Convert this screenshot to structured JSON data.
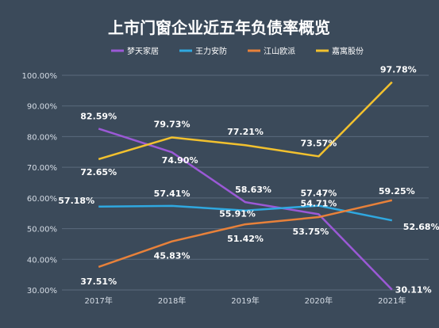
{
  "chart_data": {
    "type": "line",
    "title": "上市门窗企业近五年负债率概览",
    "categories": [
      "2017年",
      "2018年",
      "2019年",
      "2020年",
      "2021年"
    ],
    "y_ticks": [
      "30.00%",
      "40.00%",
      "50.00%",
      "60.00%",
      "70.00%",
      "80.00%",
      "90.00%",
      "100.00%"
    ],
    "ylim": [
      30,
      100
    ],
    "grid": true,
    "legend_position": "top",
    "series": [
      {
        "name": "梦天家居",
        "color": "#9b59d6",
        "values": [
          82.59,
          74.9,
          58.63,
          54.71,
          30.11
        ],
        "labels": [
          "82.59%",
          "74.90%",
          "58.63%",
          "54.71%",
          "30.11%"
        ]
      },
      {
        "name": "王力安防",
        "color": "#2fa8e0",
        "values": [
          57.18,
          57.41,
          55.91,
          57.47,
          52.68
        ],
        "labels": [
          "57.18%",
          "57.41%",
          "55.91%",
          "57.47%",
          "52.68%"
        ]
      },
      {
        "name": "江山欧派",
        "color": "#e8813a",
        "values": [
          37.51,
          45.83,
          51.42,
          53.75,
          59.25
        ],
        "labels": [
          "37.51%",
          "45.83%",
          "51.42%",
          "53.75%",
          "59.25%"
        ]
      },
      {
        "name": "嘉寓股份",
        "color": "#f2c12e",
        "values": [
          72.65,
          79.73,
          77.21,
          73.57,
          97.78
        ],
        "labels": [
          "72.65%",
          "79.73%",
          "77.21%",
          "73.57%",
          "97.78%"
        ]
      }
    ]
  }
}
